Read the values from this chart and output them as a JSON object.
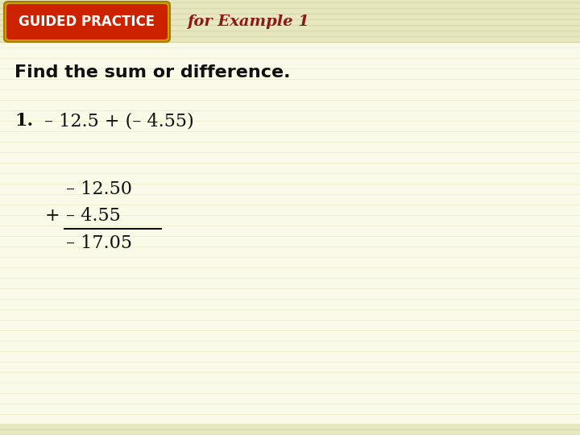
{
  "bg_color": "#fafae8",
  "stripe_color": "#eeeecc",
  "header_band_color": "#e8e8c0",
  "header_stripe_color": "#d8d8a8",
  "badge_bg": "#cc2200",
  "badge_border": "#c8a000",
  "badge_text": "GUIDED PRACTICE",
  "badge_text_color": "#ffffff",
  "header_text": "for Example 1",
  "header_text_color": "#8b1a1a",
  "instruction_text": "Find the sum or difference.",
  "instruction_color": "#111111",
  "number_label": "1.",
  "problem_text": "– 12.5 + (– 4.55)",
  "line1": "– 12.50",
  "line2": "– 4.55",
  "plus_sign": "+",
  "line3": "– 17.05",
  "text_color": "#111111",
  "line_color": "#111111"
}
